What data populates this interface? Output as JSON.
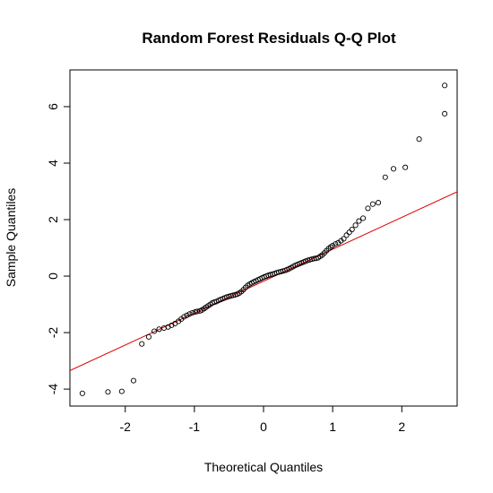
{
  "chart_data": {
    "type": "scatter",
    "title": "Random Forest Residuals Q-Q Plot",
    "xlabel": "Theoretical Quantiles",
    "ylabel": "Sample Quantiles",
    "xlim": [
      -2.8,
      2.8
    ],
    "ylim": [
      -4.6,
      7.3
    ],
    "x_ticks": [
      -2,
      -1,
      0,
      1,
      2
    ],
    "x_tick_labels": [
      "-2",
      "-1",
      "0",
      "1",
      "2"
    ],
    "y_ticks": [
      -4,
      -2,
      0,
      2,
      4,
      6
    ],
    "y_tick_labels": [
      "-4",
      "-2",
      "0",
      "2",
      "4",
      "6"
    ],
    "grid": false,
    "point_color": "#000000",
    "line_color": "#dd0000",
    "qq_line": {
      "slope": 1.13,
      "intercept": -0.18
    },
    "points": [
      [
        -2.62,
        -4.15
      ],
      [
        -2.25,
        -4.1
      ],
      [
        -2.05,
        -4.08
      ],
      [
        -1.88,
        -3.7
      ],
      [
        -1.76,
        -2.4
      ],
      [
        -1.66,
        -2.15
      ],
      [
        -1.58,
        -1.95
      ],
      [
        -1.51,
        -1.88
      ],
      [
        -1.44,
        -1.84
      ],
      [
        -1.38,
        -1.8
      ],
      [
        -1.33,
        -1.74
      ],
      [
        -1.28,
        -1.68
      ],
      [
        -1.23,
        -1.6
      ],
      [
        -1.19,
        -1.52
      ],
      [
        -1.15,
        -1.44
      ],
      [
        -1.11,
        -1.39
      ],
      [
        -1.07,
        -1.34
      ],
      [
        -1.03,
        -1.3
      ],
      [
        -0.99,
        -1.27
      ],
      [
        -0.96,
        -1.25
      ],
      [
        -0.92,
        -1.23
      ],
      [
        -0.89,
        -1.2
      ],
      [
        -0.86,
        -1.15
      ],
      [
        -0.83,
        -1.1
      ],
      [
        -0.8,
        -1.05
      ],
      [
        -0.77,
        -1.0
      ],
      [
        -0.74,
        -0.95
      ],
      [
        -0.71,
        -0.92
      ],
      [
        -0.68,
        -0.9
      ],
      [
        -0.65,
        -0.86
      ],
      [
        -0.62,
        -0.83
      ],
      [
        -0.59,
        -0.8
      ],
      [
        -0.56,
        -0.77
      ],
      [
        -0.53,
        -0.74
      ],
      [
        -0.5,
        -0.72
      ],
      [
        -0.47,
        -0.7
      ],
      [
        -0.44,
        -0.68
      ],
      [
        -0.41,
        -0.66
      ],
      [
        -0.38,
        -0.64
      ],
      [
        -0.35,
        -0.6
      ],
      [
        -0.32,
        -0.55
      ],
      [
        -0.29,
        -0.48
      ],
      [
        -0.26,
        -0.4
      ],
      [
        -0.23,
        -0.33
      ],
      [
        -0.2,
        -0.28
      ],
      [
        -0.17,
        -0.24
      ],
      [
        -0.14,
        -0.2
      ],
      [
        -0.11,
        -0.17
      ],
      [
        -0.08,
        -0.13
      ],
      [
        -0.05,
        -0.1
      ],
      [
        -0.02,
        -0.06
      ],
      [
        0.01,
        -0.03
      ],
      [
        0.04,
        0.0
      ],
      [
        0.07,
        0.03
      ],
      [
        0.1,
        0.05
      ],
      [
        0.13,
        0.07
      ],
      [
        0.16,
        0.09
      ],
      [
        0.19,
        0.12
      ],
      [
        0.22,
        0.14
      ],
      [
        0.25,
        0.16
      ],
      [
        0.28,
        0.18
      ],
      [
        0.31,
        0.2
      ],
      [
        0.34,
        0.23
      ],
      [
        0.37,
        0.26
      ],
      [
        0.4,
        0.3
      ],
      [
        0.43,
        0.34
      ],
      [
        0.46,
        0.38
      ],
      [
        0.49,
        0.41
      ],
      [
        0.52,
        0.44
      ],
      [
        0.55,
        0.47
      ],
      [
        0.58,
        0.5
      ],
      [
        0.61,
        0.53
      ],
      [
        0.64,
        0.56
      ],
      [
        0.67,
        0.58
      ],
      [
        0.7,
        0.6
      ],
      [
        0.73,
        0.62
      ],
      [
        0.76,
        0.63
      ],
      [
        0.79,
        0.65
      ],
      [
        0.82,
        0.7
      ],
      [
        0.85,
        0.75
      ],
      [
        0.88,
        0.82
      ],
      [
        0.91,
        0.9
      ],
      [
        0.94,
        0.97
      ],
      [
        0.97,
        1.03
      ],
      [
        1.0,
        1.08
      ],
      [
        1.04,
        1.14
      ],
      [
        1.08,
        1.18
      ],
      [
        1.12,
        1.25
      ],
      [
        1.16,
        1.32
      ],
      [
        1.2,
        1.45
      ],
      [
        1.24,
        1.55
      ],
      [
        1.28,
        1.65
      ],
      [
        1.33,
        1.8
      ],
      [
        1.38,
        1.95
      ],
      [
        1.44,
        2.05
      ],
      [
        1.51,
        2.4
      ],
      [
        1.58,
        2.55
      ],
      [
        1.66,
        2.6
      ],
      [
        1.76,
        3.5
      ],
      [
        1.88,
        3.8
      ],
      [
        2.05,
        3.85
      ],
      [
        2.25,
        4.85
      ],
      [
        2.62,
        5.75
      ],
      [
        2.62,
        6.75
      ]
    ]
  }
}
